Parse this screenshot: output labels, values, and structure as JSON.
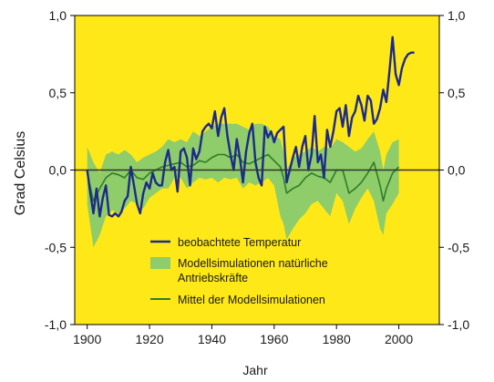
{
  "chart_data": {
    "type": "line",
    "title": "",
    "xlabel": "Jahr",
    "ylabel": "Grad Celsius",
    "xlim": [
      1896,
      2013
    ],
    "ylim": [
      -1.0,
      1.0
    ],
    "x_ticks": [
      1900,
      1920,
      1940,
      1960,
      1980,
      2000
    ],
    "y_ticks": [
      -1.0,
      -0.5,
      0.0,
      0.5,
      1.0
    ],
    "x_tick_labels": [
      "1900",
      "1920",
      "1940",
      "1960",
      "1980",
      "2000"
    ],
    "y_tick_labels": [
      "-1,0",
      "-0,5",
      "0,0",
      "0,5",
      "1,0"
    ],
    "grid": false,
    "legend_position": "bottom-center",
    "colors": {
      "background": "#FFE817",
      "observed": "#1C2A8C",
      "band": "#8FCC6A",
      "model_mean": "#2E7D2A",
      "zero_line": "#333333"
    },
    "series": [
      {
        "name": "beobachtete Temperatur",
        "kind": "line",
        "x": [
          1900,
          1901,
          1902,
          1903,
          1904,
          1905,
          1906,
          1907,
          1908,
          1909,
          1910,
          1911,
          1912,
          1913,
          1914,
          1915,
          1916,
          1917,
          1918,
          1919,
          1920,
          1921,
          1922,
          1923,
          1924,
          1925,
          1926,
          1927,
          1928,
          1929,
          1930,
          1931,
          1932,
          1933,
          1934,
          1935,
          1936,
          1937,
          1938,
          1939,
          1940,
          1941,
          1942,
          1943,
          1944,
          1945,
          1946,
          1947,
          1948,
          1949,
          1950,
          1951,
          1952,
          1953,
          1954,
          1955,
          1956,
          1957,
          1958,
          1959,
          1960,
          1961,
          1962,
          1963,
          1964,
          1965,
          1966,
          1967,
          1968,
          1969,
          1970,
          1971,
          1972,
          1973,
          1974,
          1975,
          1976,
          1977,
          1978,
          1979,
          1980,
          1981,
          1982,
          1983,
          1984,
          1985,
          1986,
          1987,
          1988,
          1989,
          1990,
          1991,
          1992,
          1993,
          1994,
          1995,
          1996,
          1997,
          1998,
          1999,
          2000,
          2001,
          2002,
          2003,
          2004,
          2005
        ],
        "y": [
          0.0,
          -0.15,
          -0.28,
          -0.12,
          -0.3,
          -0.18,
          -0.1,
          -0.29,
          -0.3,
          -0.28,
          -0.3,
          -0.27,
          -0.2,
          -0.17,
          0.02,
          -0.1,
          -0.22,
          -0.28,
          -0.15,
          -0.08,
          -0.12,
          -0.02,
          -0.08,
          -0.1,
          -0.1,
          0.05,
          0.13,
          0.0,
          0.02,
          -0.14,
          0.12,
          0.14,
          0.08,
          -0.1,
          0.14,
          0.07,
          0.12,
          0.25,
          0.28,
          0.3,
          0.27,
          0.38,
          0.22,
          0.34,
          0.4,
          0.22,
          0.1,
          0.0,
          0.2,
          0.08,
          -0.08,
          0.12,
          0.24,
          0.3,
          0.05,
          -0.05,
          -0.1,
          0.28,
          0.21,
          0.25,
          0.18,
          0.24,
          0.26,
          0.28,
          -0.08,
          0.0,
          0.08,
          0.15,
          0.02,
          0.15,
          0.22,
          0.0,
          0.1,
          0.35,
          0.05,
          0.1,
          -0.05,
          0.26,
          0.15,
          0.25,
          0.38,
          0.4,
          0.28,
          0.42,
          0.22,
          0.34,
          0.38,
          0.48,
          0.42,
          0.32,
          0.48,
          0.45,
          0.3,
          0.33,
          0.4,
          0.52,
          0.44,
          0.64,
          0.86,
          0.62,
          0.55,
          0.66,
          0.72,
          0.75,
          0.76,
          0.76
        ]
      },
      {
        "name": "Modellsimulationen natürliche Antriebskräfte",
        "kind": "band",
        "x": [
          1900,
          1902,
          1904,
          1906,
          1908,
          1910,
          1912,
          1914,
          1916,
          1918,
          1920,
          1922,
          1924,
          1926,
          1928,
          1930,
          1932,
          1934,
          1936,
          1938,
          1940,
          1942,
          1944,
          1946,
          1948,
          1950,
          1952,
          1954,
          1956,
          1958,
          1960,
          1962,
          1963,
          1964,
          1966,
          1968,
          1970,
          1972,
          1974,
          1976,
          1978,
          1980,
          1982,
          1984,
          1986,
          1988,
          1990,
          1992,
          1994,
          1995,
          1996,
          1998,
          2000
        ],
        "lower": [
          -0.22,
          -0.5,
          -0.42,
          -0.3,
          -0.26,
          -0.28,
          -0.25,
          -0.2,
          -0.22,
          -0.25,
          -0.18,
          -0.15,
          -0.12,
          -0.12,
          -0.05,
          -0.05,
          -0.12,
          -0.08,
          -0.05,
          -0.06,
          -0.05,
          -0.08,
          -0.05,
          -0.06,
          -0.05,
          -0.12,
          -0.08,
          -0.1,
          -0.08,
          -0.05,
          -0.1,
          -0.3,
          -0.35,
          -0.45,
          -0.38,
          -0.32,
          -0.28,
          -0.22,
          -0.2,
          -0.25,
          -0.3,
          -0.15,
          -0.2,
          -0.35,
          -0.25,
          -0.18,
          -0.12,
          -0.2,
          -0.38,
          -0.42,
          -0.28,
          -0.22,
          -0.15
        ],
        "upper": [
          0.15,
          0.05,
          -0.02,
          0.1,
          0.12,
          0.1,
          0.13,
          0.1,
          0.05,
          0.08,
          0.1,
          0.12,
          0.15,
          0.2,
          0.18,
          0.2,
          0.18,
          0.25,
          0.22,
          0.25,
          0.28,
          0.3,
          0.3,
          0.3,
          0.3,
          0.28,
          0.26,
          0.3,
          0.3,
          0.28,
          0.22,
          0.2,
          0.12,
          0.0,
          0.08,
          0.1,
          0.12,
          0.15,
          0.12,
          0.15,
          0.14,
          0.2,
          0.18,
          0.15,
          0.12,
          0.14,
          0.2,
          0.25,
          0.12,
          0.0,
          0.1,
          0.18,
          0.2
        ]
      },
      {
        "name": "Mittel der Modellsimulationen",
        "kind": "line",
        "x": [
          1900,
          1902,
          1904,
          1906,
          1908,
          1910,
          1912,
          1914,
          1916,
          1918,
          1920,
          1922,
          1924,
          1926,
          1928,
          1930,
          1932,
          1934,
          1936,
          1938,
          1940,
          1942,
          1944,
          1946,
          1948,
          1950,
          1952,
          1954,
          1956,
          1958,
          1960,
          1962,
          1963,
          1964,
          1966,
          1968,
          1970,
          1972,
          1974,
          1976,
          1978,
          1980,
          1982,
          1984,
          1986,
          1988,
          1990,
          1992,
          1994,
          1995,
          1996,
          1998,
          2000
        ],
        "y": [
          -0.02,
          -0.2,
          -0.12,
          -0.05,
          -0.02,
          -0.03,
          -0.05,
          0.0,
          -0.05,
          -0.06,
          -0.02,
          0.0,
          0.02,
          0.03,
          0.04,
          0.05,
          0.02,
          0.03,
          0.06,
          0.05,
          0.08,
          0.1,
          0.1,
          0.08,
          0.1,
          0.05,
          0.04,
          0.06,
          0.08,
          0.1,
          0.06,
          0.02,
          -0.05,
          -0.15,
          -0.12,
          -0.1,
          -0.05,
          -0.02,
          -0.04,
          -0.05,
          -0.08,
          0.0,
          0.0,
          -0.15,
          -0.12,
          -0.08,
          -0.02,
          0.05,
          -0.1,
          -0.2,
          -0.12,
          -0.02,
          0.02
        ]
      }
    ]
  },
  "legend": {
    "items": [
      {
        "label": "beobachtete Temperatur"
      },
      {
        "label": "Modellsimulationen natürliche\nAntriebskräfte"
      },
      {
        "label": "Mittel der Modellsimulationen"
      }
    ]
  }
}
